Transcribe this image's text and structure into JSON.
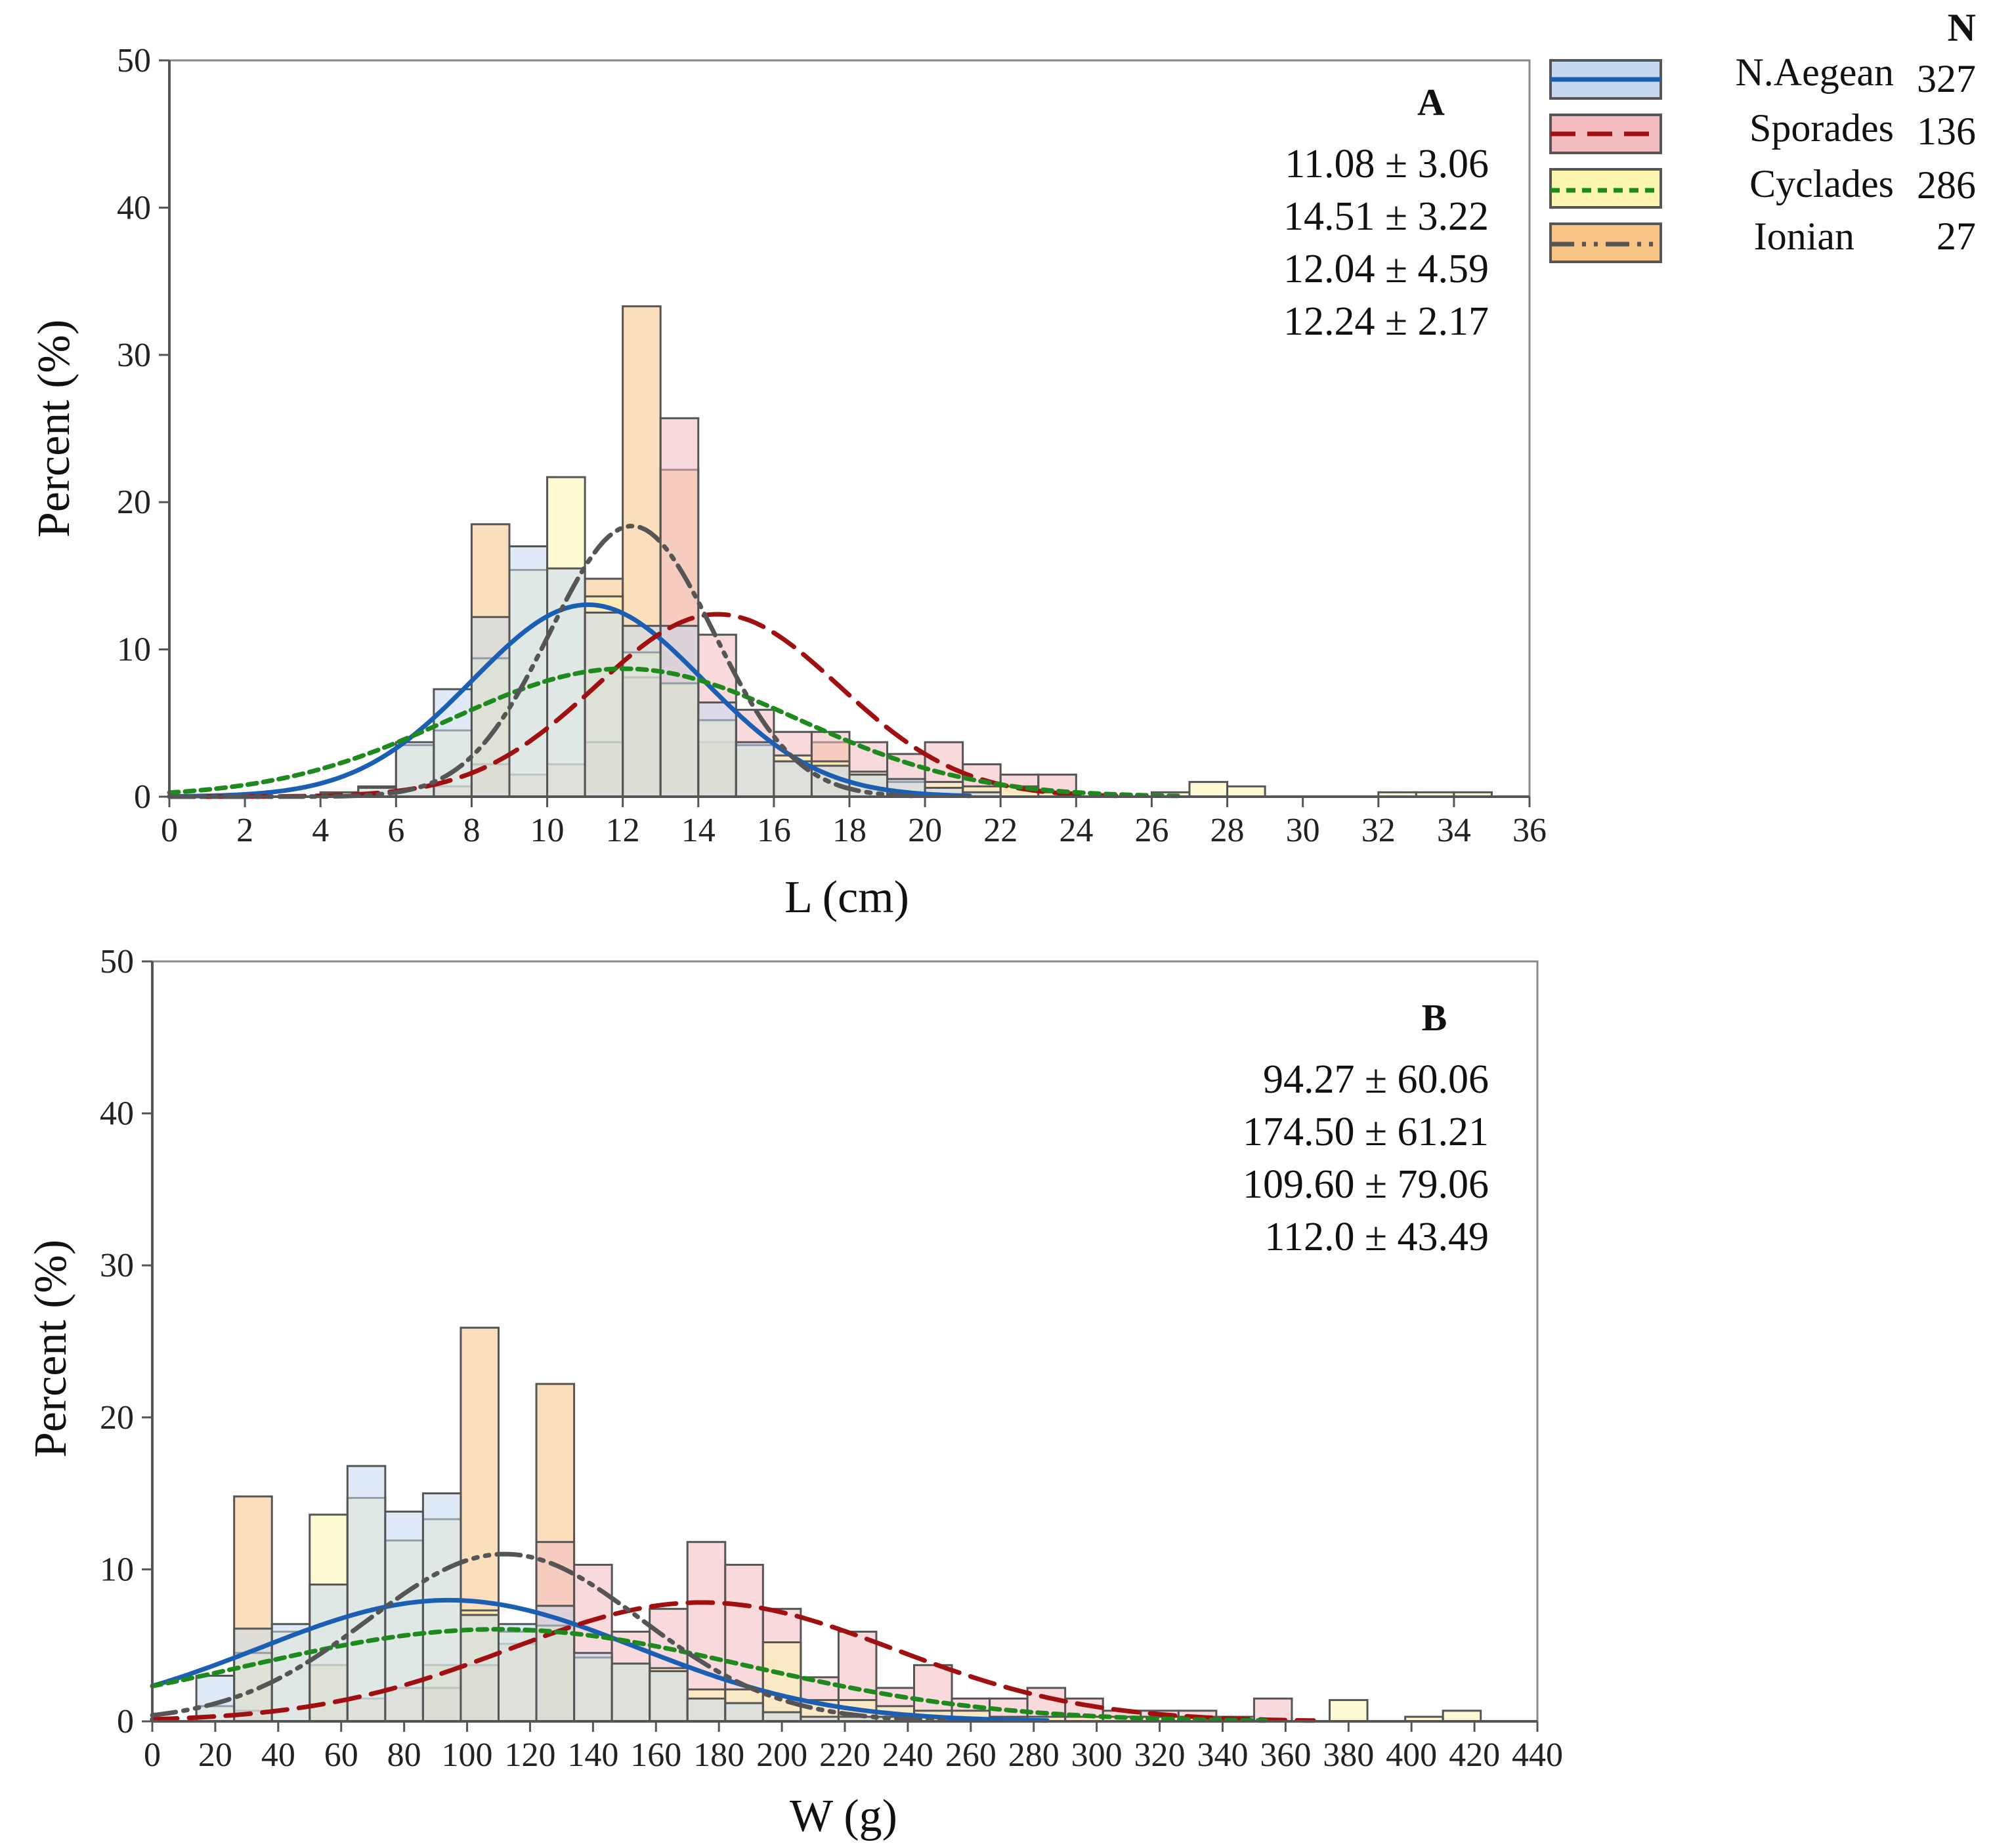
{
  "legend": {
    "header": "N",
    "entries": [
      {
        "name": "N.Aegean",
        "n": "327",
        "fill": "#c6d9f0",
        "line": "#1a5fb4",
        "dash": "solid"
      },
      {
        "name": "Sporades",
        "n": "136",
        "fill": "#f2bcc0",
        "line": "#a01010",
        "dash": "dashed"
      },
      {
        "name": "Cyclades",
        "n": "286",
        "fill": "#fbf5b0",
        "line": "#1e8a1e",
        "dash": "dotted"
      },
      {
        "name": "Ionian",
        "n": "27",
        "fill": "#f7c486",
        "line": "#555555",
        "dash": "dash-dot-dot"
      }
    ]
  },
  "chart_data": [
    {
      "type": "bar",
      "panel": "A",
      "xlabel": "L (cm)",
      "ylabel": "Percent (%)",
      "xlim": [
        0,
        36
      ],
      "ylim": [
        0,
        50
      ],
      "xticks": [
        0,
        2,
        4,
        6,
        8,
        10,
        12,
        14,
        16,
        18,
        20,
        22,
        24,
        26,
        28,
        30,
        32,
        34,
        36
      ],
      "yticks": [
        0,
        10,
        20,
        30,
        40,
        50
      ],
      "bin_width": 1,
      "stats": [
        "11.08 ± 3.06",
        "14.51 ± 3.22",
        "12.04 ± 4.59",
        "12.24 ± 2.17"
      ],
      "series": [
        {
          "name": "N.Aegean",
          "bins": [
            [
              5,
              0.6
            ],
            [
              6,
              3.7
            ],
            [
              7,
              7.3
            ],
            [
              8,
              12.2
            ],
            [
              9,
              17.0
            ],
            [
              10,
              15.5
            ],
            [
              11,
              12.5
            ],
            [
              12,
              11.6
            ],
            [
              13,
              11.6
            ],
            [
              14,
              6.4
            ],
            [
              15,
              3.7
            ],
            [
              16,
              2.4
            ],
            [
              17,
              2.1
            ],
            [
              18,
              1.5
            ],
            [
              19,
              1.2
            ],
            [
              20,
              0.6
            ],
            [
              21,
              0.3
            ]
          ],
          "mean": 11.08,
          "sd": 3.06
        },
        {
          "name": "Sporades",
          "bins": [
            [
              7,
              0.7
            ],
            [
              8,
              2.2
            ],
            [
              9,
              1.5
            ],
            [
              10,
              2.2
            ],
            [
              11,
              3.7
            ],
            [
              12,
              8.1
            ],
            [
              13,
              25.7
            ],
            [
              14,
              11.0
            ],
            [
              15,
              5.9
            ],
            [
              16,
              4.4
            ],
            [
              17,
              4.4
            ],
            [
              18,
              3.7
            ],
            [
              19,
              2.9
            ],
            [
              20,
              3.7
            ],
            [
              21,
              2.2
            ],
            [
              22,
              1.5
            ],
            [
              23,
              1.5
            ]
          ],
          "mean": 14.51,
          "sd": 3.22
        },
        {
          "name": "Cyclades",
          "bins": [
            [
              4,
              0.3
            ],
            [
              5,
              0.7
            ],
            [
              6,
              3.5
            ],
            [
              7,
              4.5
            ],
            [
              8,
              9.4
            ],
            [
              9,
              15.4
            ],
            [
              10,
              21.7
            ],
            [
              11,
              13.6
            ],
            [
              12,
              9.8
            ],
            [
              13,
              7.7
            ],
            [
              14,
              5.2
            ],
            [
              15,
              3.5
            ],
            [
              16,
              2.8
            ],
            [
              17,
              2.4
            ],
            [
              18,
              1.7
            ],
            [
              19,
              1.0
            ],
            [
              20,
              1.0
            ],
            [
              21,
              0.7
            ],
            [
              22,
              0.7
            ],
            [
              23,
              0.3
            ],
            [
              26,
              0.3
            ],
            [
              27,
              1.0
            ],
            [
              28,
              0.7
            ],
            [
              32,
              0.3
            ],
            [
              33,
              0.3
            ],
            [
              34,
              0.3
            ]
          ],
          "mean": 12.04,
          "sd": 4.59
        },
        {
          "name": "Ionian",
          "bins": [
            [
              8,
              18.5
            ],
            [
              11,
              14.8
            ],
            [
              12,
              33.3
            ],
            [
              13,
              22.2
            ],
            [
              14,
              3.7
            ],
            [
              17,
              3.7
            ]
          ],
          "mean": 12.24,
          "sd": 2.17
        }
      ]
    },
    {
      "type": "bar",
      "panel": "B",
      "xlabel": "W (g)",
      "ylabel": "Percent (%)",
      "xlim": [
        0,
        440
      ],
      "ylim": [
        0,
        50
      ],
      "xticks": [
        0,
        20,
        40,
        60,
        80,
        100,
        120,
        140,
        160,
        180,
        200,
        220,
        240,
        260,
        280,
        300,
        320,
        340,
        360,
        380,
        400,
        420,
        440
      ],
      "yticks": [
        0,
        10,
        20,
        30,
        40,
        50
      ],
      "bin_width": 12,
      "stats": [
        "94.27 ± 60.06",
        "174.50 ± 61.21",
        "109.60 ± 79.06",
        "112.0 ± 43.49"
      ],
      "series": [
        {
          "name": "N.Aegean",
          "bins": [
            [
              14,
              3.0
            ],
            [
              26,
              6.1
            ],
            [
              38,
              6.4
            ],
            [
              50,
              9.0
            ],
            [
              62,
              16.8
            ],
            [
              74,
              13.8
            ],
            [
              86,
              15.0
            ],
            [
              98,
              7.0
            ],
            [
              110,
              6.4
            ],
            [
              122,
              7.6
            ],
            [
              134,
              4.5
            ],
            [
              146,
              3.8
            ],
            [
              158,
              3.3
            ],
            [
              170,
              1.5
            ],
            [
              182,
              1.2
            ],
            [
              194,
              0.6
            ],
            [
              206,
              0.3
            ],
            [
              218,
              0.3
            ],
            [
              230,
              0.3
            ]
          ],
          "mean": 94.27,
          "sd": 60.06
        },
        {
          "name": "Sporades",
          "bins": [
            [
              26,
              0.7
            ],
            [
              62,
              1.5
            ],
            [
              74,
              2.2
            ],
            [
              86,
              2.2
            ],
            [
              98,
              3.7
            ],
            [
              110,
              5.1
            ],
            [
              122,
              11.8
            ],
            [
              134,
              10.3
            ],
            [
              146,
              5.9
            ],
            [
              158,
              7.4
            ],
            [
              170,
              11.8
            ],
            [
              182,
              10.3
            ],
            [
              194,
              7.4
            ],
            [
              206,
              2.9
            ],
            [
              218,
              5.9
            ],
            [
              230,
              2.2
            ],
            [
              242,
              3.7
            ],
            [
              254,
              1.5
            ],
            [
              266,
              1.5
            ],
            [
              278,
              2.2
            ],
            [
              290,
              1.5
            ],
            [
              302,
              0.7
            ],
            [
              314,
              0.7
            ],
            [
              326,
              0.7
            ],
            [
              350,
              1.5
            ]
          ],
          "mean": 174.5,
          "sd": 61.21
        },
        {
          "name": "Cyclades",
          "bins": [
            [
              14,
              1.0
            ],
            [
              26,
              4.5
            ],
            [
              38,
              5.9
            ],
            [
              50,
              13.6
            ],
            [
              62,
              14.7
            ],
            [
              74,
              11.9
            ],
            [
              86,
              13.3
            ],
            [
              98,
              7.3
            ],
            [
              110,
              5.9
            ],
            [
              122,
              6.3
            ],
            [
              134,
              4.2
            ],
            [
              146,
              3.8
            ],
            [
              158,
              3.5
            ],
            [
              170,
              2.1
            ],
            [
              182,
              2.1
            ],
            [
              194,
              5.2
            ],
            [
              206,
              1.4
            ],
            [
              218,
              1.4
            ],
            [
              230,
              1.0
            ],
            [
              242,
              0.7
            ],
            [
              254,
              0.7
            ],
            [
              266,
              0.3
            ],
            [
              278,
              0.3
            ],
            [
              290,
              0.3
            ],
            [
              302,
              0.3
            ],
            [
              314,
              0.3
            ],
            [
              326,
              0.3
            ],
            [
              338,
              0.3
            ],
            [
              374,
              1.4
            ],
            [
              398,
              0.3
            ],
            [
              410,
              0.7
            ]
          ],
          "mean": 109.6,
          "sd": 79.06
        },
        {
          "name": "Ionian",
          "bins": [
            [
              26,
              14.8
            ],
            [
              50,
              3.7
            ],
            [
              86,
              3.7
            ],
            [
              98,
              25.9
            ],
            [
              122,
              22.2
            ]
          ],
          "mean": 112.0,
          "sd": 43.49
        }
      ]
    }
  ]
}
